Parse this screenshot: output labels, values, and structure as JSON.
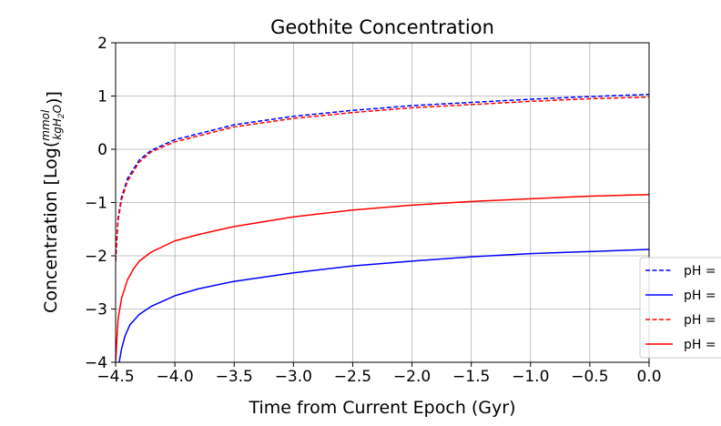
{
  "chart_data": {
    "type": "line",
    "title": "Geothite Concentration",
    "xlabel": "Time from Current Epoch (Gyr)",
    "ylabel_prefix": "Concentration [Log(",
    "ylabel_num": "mmol",
    "ylabel_den_pre": "kgH",
    "ylabel_den_sub": "2",
    "ylabel_den_post": "O",
    "ylabel_suffix": ")]",
    "xlim": [
      -4.5,
      0.0
    ],
    "ylim": [
      -4,
      2
    ],
    "xticks": [
      -4.5,
      -4.0,
      -3.5,
      -3.0,
      -2.5,
      -2.0,
      -1.5,
      -1.0,
      -0.5,
      0.0
    ],
    "xtick_labels": [
      "−4.5",
      "−4.0",
      "−3.5",
      "−3.0",
      "−2.5",
      "−2.0",
      "−1.5",
      "−1.0",
      "−0.5",
      "0.0"
    ],
    "yticks": [
      -4,
      -3,
      -2,
      -1,
      0,
      1,
      2
    ],
    "ytick_labels": [
      "−4",
      "−3",
      "−2",
      "−1",
      "0",
      "1",
      "2"
    ],
    "grid": true,
    "legend_position": "lower-right",
    "series": [
      {
        "name": "pH =",
        "color": "#0000ff",
        "style": "dashed",
        "x": [
          -4.5,
          -4.48,
          -4.45,
          -4.4,
          -4.3,
          -4.2,
          -4.0,
          -3.5,
          -3.0,
          -2.5,
          -2.0,
          -1.5,
          -1.0,
          -0.5,
          0.0
        ],
        "y": [
          -2.1,
          -1.3,
          -0.9,
          -0.55,
          -0.2,
          -0.02,
          0.18,
          0.46,
          0.62,
          0.73,
          0.82,
          0.88,
          0.94,
          0.99,
          1.03
        ]
      },
      {
        "name": "pH =",
        "color": "#0000ff",
        "style": "solid",
        "x": [
          -4.47,
          -4.45,
          -4.42,
          -4.38,
          -4.3,
          -4.2,
          -4.0,
          -3.8,
          -3.5,
          -3.0,
          -2.5,
          -2.0,
          -1.5,
          -1.0,
          -0.5,
          0.0
        ],
        "y": [
          -4.0,
          -3.75,
          -3.5,
          -3.3,
          -3.1,
          -2.95,
          -2.75,
          -2.62,
          -2.48,
          -2.32,
          -2.19,
          -2.1,
          -2.02,
          -1.96,
          -1.92,
          -1.88
        ]
      },
      {
        "name": "pH =",
        "color": "#ff0000",
        "style": "dashed",
        "x": [
          -4.5,
          -4.48,
          -4.45,
          -4.4,
          -4.3,
          -4.2,
          -4.0,
          -3.5,
          -3.0,
          -2.5,
          -2.0,
          -1.5,
          -1.0,
          -0.5,
          0.0
        ],
        "y": [
          -2.1,
          -1.35,
          -0.95,
          -0.6,
          -0.24,
          -0.05,
          0.14,
          0.42,
          0.58,
          0.69,
          0.78,
          0.84,
          0.9,
          0.95,
          0.98
        ]
      },
      {
        "name": "pH =",
        "color": "#ff0000",
        "style": "solid",
        "x": [
          -4.5,
          -4.48,
          -4.45,
          -4.4,
          -4.35,
          -4.3,
          -4.2,
          -4.0,
          -3.8,
          -3.5,
          -3.0,
          -2.5,
          -2.0,
          -1.5,
          -1.0,
          -0.5,
          0.0
        ],
        "y": [
          -4.0,
          -3.2,
          -2.8,
          -2.45,
          -2.25,
          -2.1,
          -1.93,
          -1.72,
          -1.6,
          -1.45,
          -1.27,
          -1.14,
          -1.05,
          -0.98,
          -0.93,
          -0.88,
          -0.85
        ]
      }
    ]
  }
}
